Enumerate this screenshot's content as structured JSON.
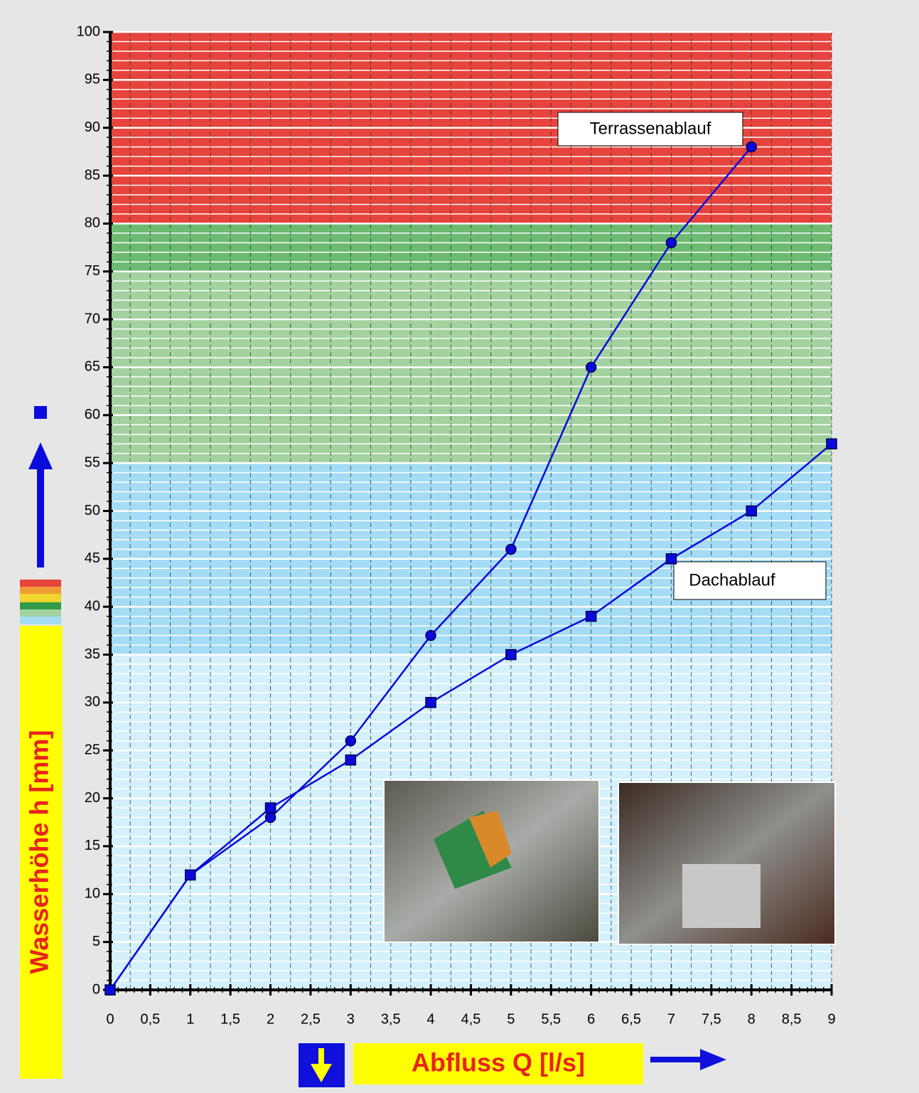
{
  "chart_data": {
    "type": "line",
    "x_label": "Abfluss Q [l/s]",
    "y_label": "Wasserhöhe h [mm]",
    "xlim": [
      0,
      9
    ],
    "ylim": [
      0,
      100
    ],
    "xticks": [
      0,
      {
        "value": 0.5,
        "label": "0,5"
      },
      1,
      {
        "value": 1.5,
        "label": "1,5"
      },
      2,
      {
        "value": 2.5,
        "label": "2,5"
      },
      3,
      {
        "value": 3.5,
        "label": "3,5"
      },
      4,
      {
        "value": 4.5,
        "label": "4,5"
      },
      5,
      {
        "value": 5.5,
        "label": "5,5"
      },
      6,
      {
        "value": 6.5,
        "label": "6,5"
      },
      7,
      {
        "value": 7.5,
        "label": "7,5"
      },
      8,
      {
        "value": 8.5,
        "label": "8,5"
      },
      9
    ],
    "yticks": [
      0,
      5,
      10,
      15,
      20,
      25,
      30,
      35,
      40,
      45,
      50,
      55,
      60,
      65,
      70,
      75,
      80,
      85,
      90,
      95,
      100
    ],
    "bands": [
      {
        "from": 0,
        "to": 35,
        "color": "#d3f0fb"
      },
      {
        "from": 35,
        "to": 55,
        "color": "#a5dcf5"
      },
      {
        "from": 55,
        "to": 75,
        "color": "#a3d2a0"
      },
      {
        "from": 75,
        "to": 80,
        "color": "#6dbb72"
      },
      {
        "from": 80,
        "to": 100,
        "color": "#e6443c"
      }
    ],
    "series": [
      {
        "name": "Terrassenablauf",
        "color": "#0a0adc",
        "marker": "circle",
        "x": [
          0,
          1,
          2,
          3,
          4,
          5,
          6,
          7,
          8
        ],
        "values": [
          0,
          12,
          18,
          26,
          37,
          46,
          65,
          78,
          88
        ]
      },
      {
        "name": "Dachablauf",
        "color": "#0a0adc",
        "marker": "square",
        "x": [
          0,
          1,
          2,
          3,
          4,
          5,
          6,
          7,
          8,
          9
        ],
        "values": [
          0,
          12,
          19,
          24,
          30,
          35,
          39,
          45,
          50,
          57
        ]
      }
    ]
  }
}
